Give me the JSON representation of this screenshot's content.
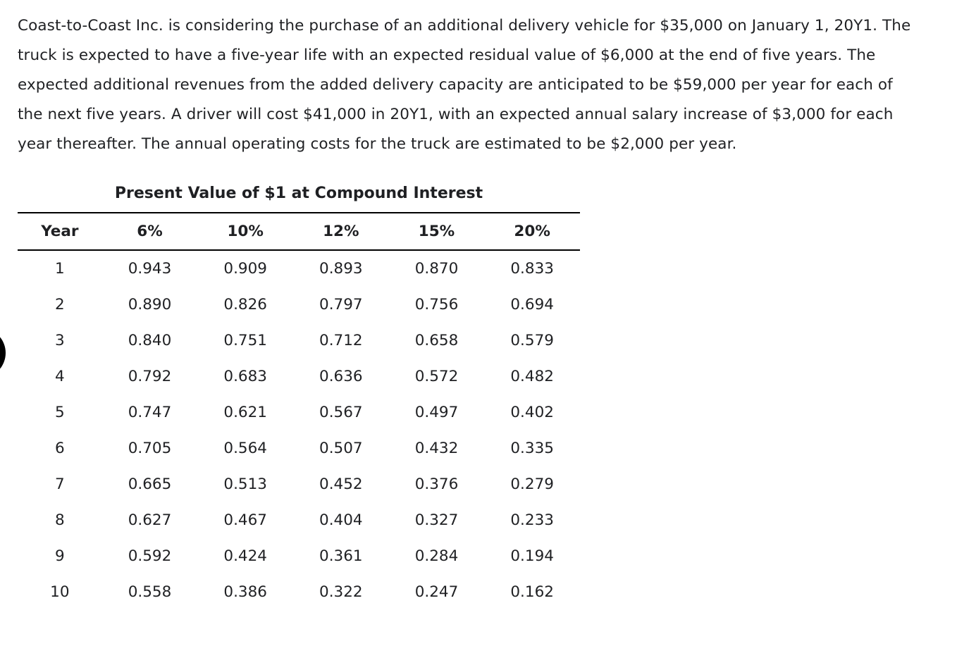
{
  "problem": {
    "text": "Coast-to-Coast Inc. is considering the purchase of an additional delivery vehicle for $35,000 on January 1, 20Y1. The truck is expected to have a five-year life with an expected residual value of $6,000 at the end of five years. The expected additional revenues from the added delivery capacity are anticipated to be $59,000 per year for each of the next five years. A driver will cost $41,000 in 20Y1, with an expected annual salary increase of $3,000 for each year thereafter. The annual operating costs for the truck are estimated to be $2,000 per year."
  },
  "table": {
    "title": "Present Value of $1 at Compound Interest",
    "headers": [
      "Year",
      "6%",
      "10%",
      "12%",
      "15%",
      "20%"
    ],
    "rows": [
      [
        "1",
        "0.943",
        "0.909",
        "0.893",
        "0.870",
        "0.833"
      ],
      [
        "2",
        "0.890",
        "0.826",
        "0.797",
        "0.756",
        "0.694"
      ],
      [
        "3",
        "0.840",
        "0.751",
        "0.712",
        "0.658",
        "0.579"
      ],
      [
        "4",
        "0.792",
        "0.683",
        "0.636",
        "0.572",
        "0.482"
      ],
      [
        "5",
        "0.747",
        "0.621",
        "0.567",
        "0.497",
        "0.402"
      ],
      [
        "6",
        "0.705",
        "0.564",
        "0.507",
        "0.432",
        "0.335"
      ],
      [
        "7",
        "0.665",
        "0.513",
        "0.452",
        "0.376",
        "0.279"
      ],
      [
        "8",
        "0.627",
        "0.467",
        "0.404",
        "0.327",
        "0.233"
      ],
      [
        "9",
        "0.592",
        "0.424",
        "0.361",
        "0.284",
        "0.194"
      ],
      [
        "10",
        "0.558",
        "0.386",
        "0.322",
        "0.247",
        "0.162"
      ]
    ]
  },
  "colors": {
    "text": "#1f2023",
    "background": "#ffffff",
    "rule": "#000000"
  }
}
